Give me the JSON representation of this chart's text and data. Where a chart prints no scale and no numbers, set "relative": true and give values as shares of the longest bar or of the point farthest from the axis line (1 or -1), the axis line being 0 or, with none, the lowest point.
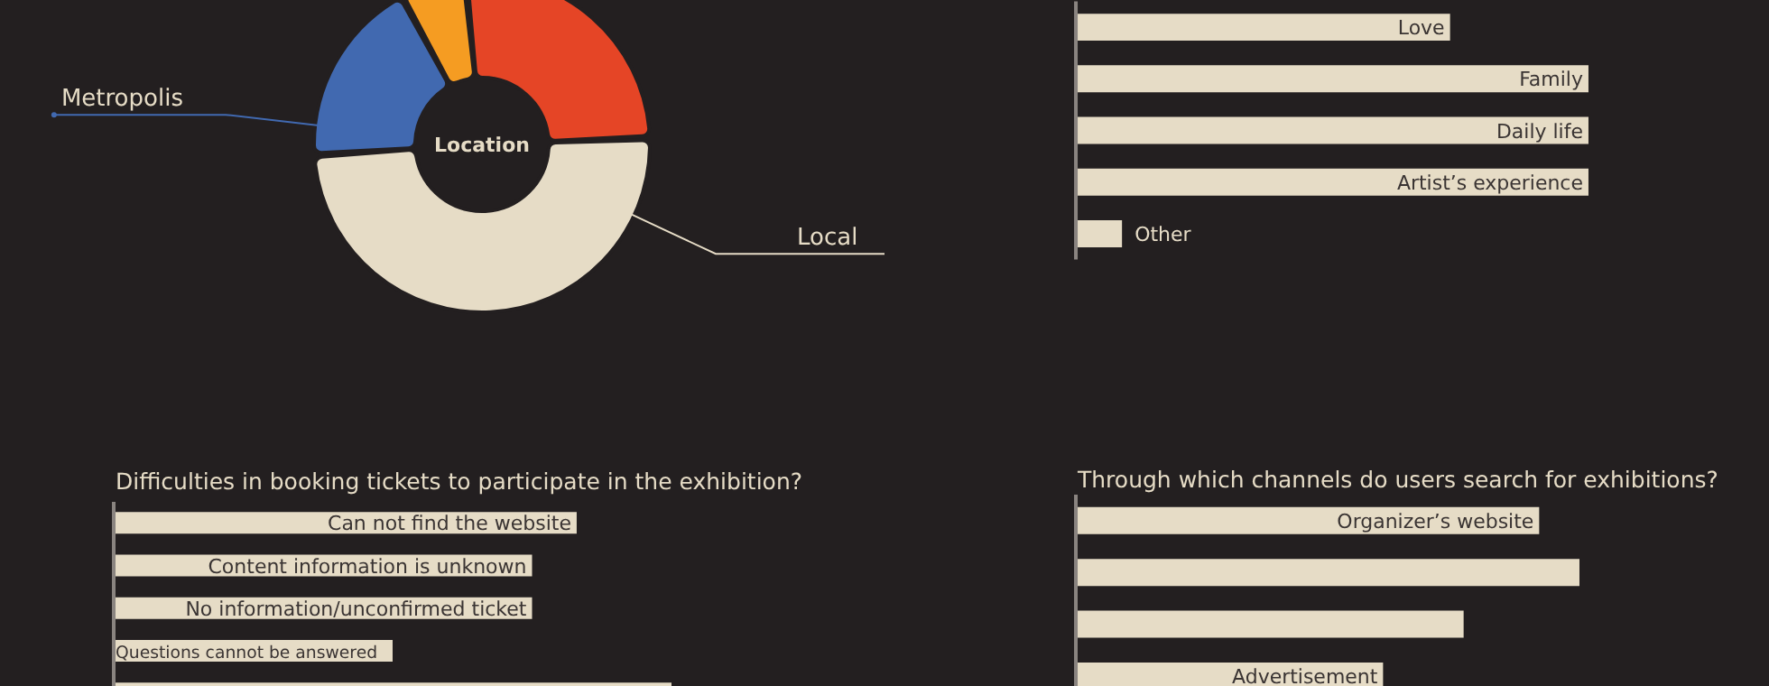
{
  "chart_data": [
    {
      "type": "donut",
      "title": "Location",
      "categories": [
        null,
        "Local",
        "Metropolis",
        null
      ],
      "values": [
        26,
        50,
        18,
        6
      ],
      "colors": [
        "#e54526",
        "#e6dcc6",
        "#4169b0",
        "#f59c22"
      ]
    },
    {
      "type": "bar",
      "orientation": "horizontal",
      "relative": true,
      "color": "#e6dcc6",
      "categories": [
        "Love",
        "Family",
        "Daily life",
        "Artist’s experience",
        "Other"
      ],
      "values": [
        0.73,
        1,
        1,
        1,
        0.09
      ]
    },
    {
      "type": "bar",
      "orientation": "horizontal",
      "relative": true,
      "title": "Difficulties in booking tickets to participate in the exhibition?",
      "color": "#e6dcc6",
      "categories": [
        "Can not find the website",
        "Content information is unknown",
        "No information/unconfirmed ticket",
        "Questions cannot be answered",
        null
      ],
      "values": [
        0.83,
        0.75,
        0.75,
        0.5,
        1
      ]
    },
    {
      "type": "bar",
      "orientation": "horizontal",
      "relative": true,
      "title": "Through which channels do users search for exhibitions?",
      "color": "#e6dcc6",
      "categories": [
        "Organizer’s website",
        null,
        null,
        "Advertisement"
      ],
      "values": [
        0.92,
        1,
        0.77,
        0.61
      ]
    }
  ]
}
